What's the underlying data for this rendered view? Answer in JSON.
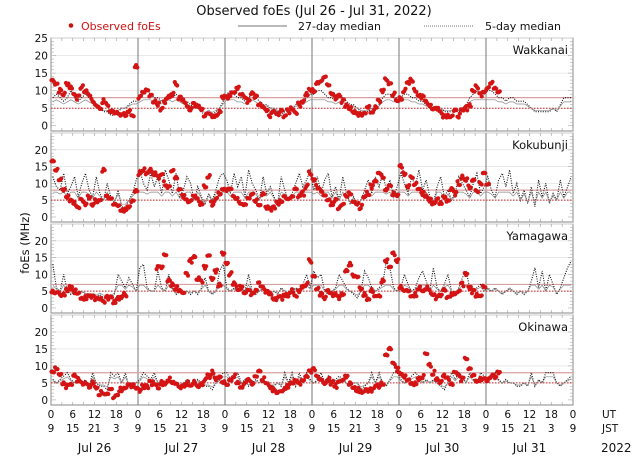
{
  "chart_data": {
    "type": "scatter",
    "title": "Observed foEs (Jul 26 - Jul 31, 2022)",
    "ylabel": "foEs (MHz)",
    "ylim": [
      -1.5,
      25
    ],
    "yticks": [
      0,
      5,
      10,
      15,
      20,
      25
    ],
    "legend": {
      "placement": "top",
      "entries": [
        {
          "label": "Observed foEs",
          "style": "red-dot",
          "color": "#cc1111"
        },
        {
          "label": "27-day median",
          "style": "solid-line",
          "color": "#555555"
        },
        {
          "label": "5-day median",
          "style": "dotted-line",
          "color": "#555555"
        }
      ]
    },
    "x_axis": {
      "unit_rows": [
        "UT",
        "JST"
      ],
      "ut_ticks": [
        "0",
        "6",
        "12",
        "18"
      ],
      "jst_ticks": [
        "9",
        "15",
        "21",
        "3"
      ],
      "days": [
        "Jul 26",
        "Jul 27",
        "Jul 28",
        "Jul 29",
        "Jul 30",
        "Jul 31"
      ],
      "year": "2022",
      "hours_total": 144
    },
    "median_line_colors": {
      "upper": "#d9a0a0",
      "lower": "#cc2222"
    },
    "stations": [
      {
        "name": "Wakkanai",
        "median27_upper": 8,
        "median27_lower": 5,
        "observed_hourly": [
          13,
          12,
          10,
          9,
          12,
          11,
          9,
          8,
          11,
          10,
          9,
          7,
          6,
          5,
          7,
          6,
          4,
          4,
          4,
          3,
          3,
          4,
          3,
          17,
          8,
          9,
          10,
          9,
          7,
          6,
          5,
          7,
          8,
          9,
          12,
          8,
          7,
          6,
          5,
          6,
          6,
          5,
          3,
          4,
          3,
          3,
          4,
          8,
          8,
          9,
          10,
          11,
          9,
          8,
          7,
          9,
          8,
          6,
          5,
          4,
          3,
          4,
          3,
          4,
          3,
          4,
          5,
          4,
          6,
          7,
          9,
          10,
          10,
          12,
          13,
          14,
          12,
          9,
          8,
          9,
          7,
          6,
          5,
          4,
          3,
          3,
          4,
          5,
          4,
          5,
          7,
          10,
          13,
          12,
          9,
          7,
          8,
          10,
          12,
          13,
          10,
          9,
          8,
          7,
          6,
          5,
          5,
          4,
          3,
          3,
          3,
          4,
          3,
          4,
          5,
          6,
          10,
          11,
          9,
          10,
          11,
          12,
          11,
          10,
          null,
          null,
          null,
          null,
          null,
          null,
          null,
          null,
          null,
          null,
          null,
          null,
          null,
          null,
          null,
          null,
          null,
          null,
          null,
          null
        ],
        "median5_hourly": [
          8,
          9,
          8,
          7,
          8,
          10,
          8,
          7,
          8,
          9,
          8,
          7,
          6,
          5,
          4,
          4,
          3,
          3,
          4,
          5,
          5,
          6,
          7,
          7,
          8,
          9,
          10,
          9,
          8,
          8,
          7,
          8,
          9,
          8,
          9,
          8,
          7,
          7,
          6,
          5,
          5,
          4,
          3,
          4,
          3,
          4,
          5,
          7,
          9,
          10,
          9,
          8,
          8,
          7,
          8,
          9,
          8,
          7,
          6,
          6,
          5,
          5,
          4,
          3,
          4,
          4,
          5,
          6,
          6,
          7,
          8,
          9,
          9,
          10,
          10,
          9,
          8,
          8,
          7,
          8,
          8,
          7,
          6,
          6,
          5,
          4,
          4,
          4,
          5,
          5,
          6,
          8,
          9,
          9,
          8,
          8,
          8,
          9,
          9,
          8,
          8,
          7,
          7,
          6,
          6,
          5,
          5,
          5,
          4,
          4,
          4,
          4,
          4,
          5,
          6,
          8,
          9,
          10,
          9,
          9,
          10,
          10,
          9,
          8,
          8,
          7,
          8,
          8,
          7,
          7,
          7,
          6,
          5,
          4,
          4,
          4,
          4,
          4,
          5,
          4,
          6,
          8,
          8,
          8
        ]
      },
      {
        "name": "Kokubunji",
        "median27_upper": 8,
        "median27_lower": 5,
        "observed_hourly": [
          17,
          14,
          11,
          8,
          6,
          5,
          4,
          3,
          5,
          4,
          6,
          4,
          5,
          5,
          14,
          6,
          5,
          4,
          3,
          2,
          2,
          3,
          5,
          8,
          13,
          14,
          13,
          14,
          13,
          12,
          13,
          10,
          9,
          14,
          12,
          8,
          6,
          5,
          5,
          6,
          5,
          4,
          9,
          12,
          4,
          5,
          7,
          8,
          8,
          8,
          6,
          5,
          4,
          4,
          6,
          7,
          5,
          4,
          7,
          3,
          2,
          3,
          4,
          5,
          6,
          5,
          6,
          8,
          6,
          7,
          9,
          13,
          11,
          9,
          8,
          6,
          5,
          4,
          5,
          3,
          4,
          6,
          7,
          5,
          4,
          3,
          6,
          7,
          9,
          11,
          13,
          12,
          8,
          9,
          7,
          6,
          15,
          13,
          9,
          12,
          10,
          8,
          7,
          6,
          5,
          4,
          5,
          4,
          6,
          5,
          8,
          7,
          10,
          12,
          11,
          9,
          11,
          8,
          10,
          13,
          10,
          null,
          null,
          null,
          null,
          null,
          null,
          null,
          null,
          null,
          null,
          null,
          null,
          null,
          null,
          null,
          null,
          null,
          null,
          null,
          null,
          null,
          null,
          null
        ],
        "median5_hourly": [
          12,
          9,
          8,
          13,
          7,
          9,
          12,
          6,
          10,
          13,
          8,
          6,
          12,
          7,
          5,
          10,
          6,
          4,
          8,
          3,
          3,
          5,
          7,
          11,
          14,
          10,
          8,
          13,
          9,
          12,
          7,
          14,
          11,
          7,
          13,
          6,
          8,
          12,
          10,
          5,
          9,
          6,
          4,
          7,
          5,
          8,
          12,
          13,
          11,
          7,
          13,
          9,
          12,
          6,
          14,
          10,
          8,
          5,
          12,
          7,
          9,
          6,
          4,
          12,
          8,
          5,
          7,
          10,
          13,
          9,
          11,
          14,
          8,
          12,
          7,
          11,
          13,
          6,
          9,
          5,
          12,
          7,
          4,
          6,
          3,
          5,
          8,
          11,
          7,
          12,
          9,
          13,
          8,
          11,
          6,
          9,
          13,
          10,
          7,
          12,
          9,
          14,
          8,
          11,
          6,
          4,
          9,
          12,
          6,
          8,
          5,
          7,
          12,
          10,
          8,
          6,
          10,
          13,
          7,
          9,
          12,
          8,
          6,
          11,
          13,
          9,
          14,
          7,
          10,
          5,
          8,
          4,
          9,
          3,
          11,
          6,
          10,
          4,
          7,
          5,
          11,
          6,
          9,
          12
        ]
      },
      {
        "name": "Yamagawa",
        "median27_upper": 7,
        "median27_lower": 5,
        "observed_hourly": [
          5,
          5,
          4,
          4,
          5,
          6,
          5,
          4,
          3,
          3,
          4,
          3,
          3,
          3,
          2,
          3,
          3,
          2,
          3,
          3,
          4,
          null,
          null,
          null,
          null,
          null,
          null,
          null,
          null,
          12,
          12,
          16,
          8,
          7,
          6,
          5,
          4,
          10,
          14,
          15,
          9,
          8,
          12,
          16,
          9,
          11,
          7,
          16,
          13,
          10,
          7,
          6,
          6,
          5,
          5,
          4,
          5,
          7,
          6,
          5,
          4,
          3,
          3,
          3,
          4,
          4,
          5,
          4,
          5,
          6,
          7,
          14,
          9,
          6,
          4,
          3,
          5,
          4,
          4,
          3,
          4,
          11,
          13,
          10,
          9,
          6,
          4,
          3,
          5,
          4,
          4,
          8,
          14,
          12,
          16,
          14,
          6,
          5,
          5,
          4,
          4,
          6,
          5,
          6,
          5,
          4,
          3,
          4,
          5,
          3,
          4,
          4,
          5,
          7,
          10,
          6,
          5,
          4,
          4,
          6,
          null,
          null,
          null,
          null,
          null,
          null,
          null,
          null,
          null,
          null,
          null,
          null,
          null,
          null,
          null,
          null,
          null,
          null,
          null,
          null,
          null,
          null,
          null,
          null
        ],
        "median5_hourly": [
          13,
          6,
          5,
          10,
          5,
          4,
          5,
          4,
          5,
          4,
          3,
          4,
          3,
          4,
          3,
          3,
          3,
          4,
          10,
          8,
          6,
          9,
          7,
          5,
          12,
          13,
          6,
          5,
          5,
          11,
          6,
          5,
          10,
          6,
          4,
          5,
          4,
          5,
          4,
          5,
          4,
          6,
          9,
          5,
          4,
          5,
          11,
          13,
          6,
          5,
          6,
          5,
          6,
          5,
          10,
          5,
          4,
          5,
          6,
          5,
          4,
          5,
          4,
          6,
          5,
          4,
          5,
          6,
          5,
          7,
          10,
          6,
          11,
          9,
          10,
          5,
          4,
          5,
          6,
          10,
          8,
          6,
          5,
          4,
          3,
          5,
          11,
          9,
          6,
          5,
          6,
          7,
          14,
          12,
          6,
          5,
          6,
          10,
          7,
          5,
          6,
          9,
          11,
          8,
          5,
          12,
          6,
          5,
          7,
          10,
          5,
          4,
          6,
          9,
          11,
          6,
          5,
          6,
          7,
          5,
          6,
          5,
          6,
          5,
          4,
          5,
          6,
          5,
          4,
          5,
          4,
          5,
          8,
          12,
          6,
          11,
          5,
          10,
          7,
          4,
          6,
          9,
          12,
          14
        ]
      },
      {
        "name": "Okinawa",
        "median27_upper": 8,
        "median27_lower": 5,
        "observed_hourly": [
          8,
          9,
          7,
          5,
          4,
          5,
          7,
          6,
          5,
          5,
          4,
          5,
          4,
          2,
          2,
          2,
          3,
          1,
          2,
          3,
          4,
          5,
          4,
          3,
          3,
          4,
          4,
          5,
          5,
          4,
          5,
          5,
          6,
          5,
          5,
          4,
          4,
          5,
          4,
          5,
          4,
          5,
          6,
          7,
          8,
          6,
          7,
          5,
          5,
          6,
          7,
          5,
          4,
          5,
          6,
          5,
          7,
          8,
          6,
          5,
          4,
          3,
          2,
          3,
          3,
          4,
          5,
          6,
          5,
          6,
          7,
          8,
          9,
          7,
          6,
          5,
          6,
          5,
          4,
          5,
          6,
          7,
          5,
          4,
          3,
          2,
          3,
          3,
          3,
          4,
          4,
          5,
          13,
          15,
          11,
          9,
          8,
          7,
          6,
          5,
          5,
          6,
          7,
          14,
          10,
          8,
          6,
          5,
          7,
          6,
          5,
          8,
          7,
          6,
          12,
          9,
          7,
          6,
          6,
          6,
          6,
          7,
          7,
          8,
          null,
          null,
          null,
          null,
          null,
          null,
          null,
          null,
          null,
          null,
          null,
          null,
          null,
          null,
          null,
          null,
          null,
          null,
          null,
          null
        ],
        "median5_hourly": [
          6,
          5,
          6,
          7,
          8,
          6,
          5,
          6,
          5,
          6,
          4,
          8,
          5,
          4,
          4,
          3,
          8,
          7,
          8,
          5,
          8,
          4,
          5,
          5,
          6,
          8,
          7,
          6,
          8,
          5,
          6,
          5,
          6,
          5,
          5,
          4,
          5,
          6,
          4,
          5,
          6,
          5,
          4,
          4,
          3,
          5,
          6,
          8,
          8,
          6,
          7,
          8,
          5,
          6,
          4,
          5,
          6,
          5,
          6,
          5,
          4,
          4,
          5,
          4,
          8,
          5,
          8,
          4,
          8,
          5,
          8,
          6,
          5,
          6,
          8,
          5,
          7,
          5,
          6,
          7,
          6,
          5,
          4,
          5,
          5,
          3,
          4,
          5,
          8,
          5,
          8,
          5,
          4,
          6,
          8,
          8,
          6,
          5,
          6,
          7,
          8,
          7,
          5,
          6,
          5,
          6,
          5,
          4,
          3,
          5,
          8,
          6,
          8,
          7,
          5,
          8,
          6,
          5,
          8,
          7,
          6,
          7,
          8,
          6,
          5,
          6,
          5,
          5,
          4,
          4,
          5,
          4,
          8,
          4,
          6,
          5,
          8,
          8,
          8,
          5,
          4,
          5,
          6,
          7
        ]
      }
    ]
  }
}
